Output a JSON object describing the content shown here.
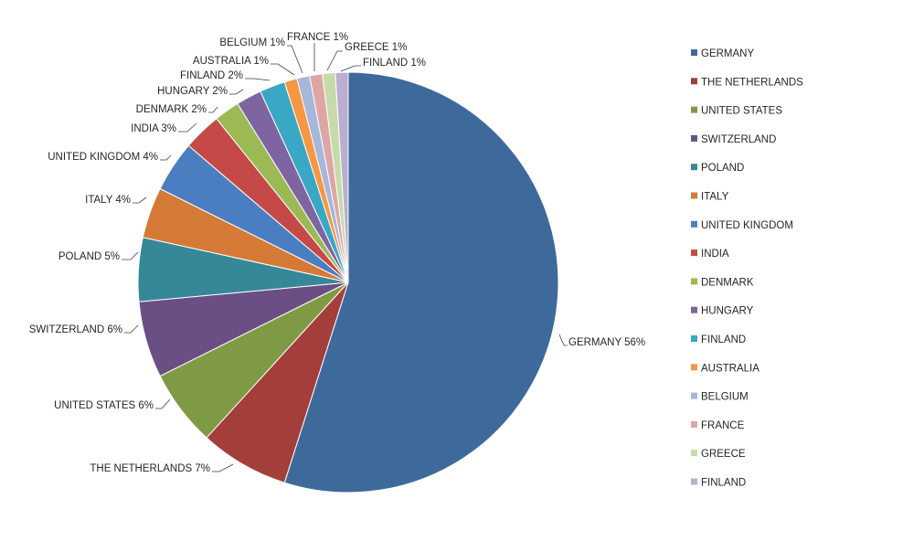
{
  "chart_data": {
    "type": "pie",
    "title": "",
    "legend_position": "right",
    "start": "12 o'clock, clockwise",
    "slices": [
      {
        "name": "GERMANY",
        "value": 56,
        "label": "GERMANY  56%",
        "color": "#3E6A9B"
      },
      {
        "name": "THE NETHERLANDS",
        "value": 7,
        "label": "THE  NETHERLANDS  7%",
        "color": "#A43E3B"
      },
      {
        "name": "UNITED STATES",
        "value": 6,
        "label": "UNITED  STATES  6%",
        "color": "#7F9A45"
      },
      {
        "name": "SWITZERLAND",
        "value": 6,
        "label": "SWITZERLAND  6%",
        "color": "#6A4F84"
      },
      {
        "name": "POLAND",
        "value": 5,
        "label": "POLAND  5%",
        "color": "#368899"
      },
      {
        "name": "ITALY",
        "value": 4,
        "label": "ITALY  4%",
        "color": "#D57A36"
      },
      {
        "name": "UNITED KINGDOM",
        "value": 4,
        "label": "UNITED  KINGDOM  4%",
        "color": "#4A7EC0"
      },
      {
        "name": "INDIA",
        "value": 3,
        "label": "INDIA 3%",
        "color": "#C54A47"
      },
      {
        "name": "DENMARK",
        "value": 2,
        "label": "DENMARK  2%",
        "color": "#9BBA56"
      },
      {
        "name": "HUNGARY",
        "value": 2,
        "label": "HUNGARY  2%",
        "color": "#7F64A2"
      },
      {
        "name": "FINLAND",
        "value": 2,
        "label": "FINLAND  2%",
        "color": "#3AA7C4"
      },
      {
        "name": "AUSTRALIA",
        "value": 1,
        "label": "AUSTRALIA  1%",
        "color": "#F79743"
      },
      {
        "name": "BELGIUM",
        "value": 1,
        "label": "BELGIUM  1%",
        "color": "#A5B7DA"
      },
      {
        "name": "FRANCE",
        "value": 1,
        "label": "FRANCE  1%",
        "color": "#DDA6A5"
      },
      {
        "name": "GREECE",
        "value": 1,
        "label": "GREECE  1%",
        "color": "#C7DBAA"
      },
      {
        "name": "FINLAND",
        "value": 1,
        "label": "FINLAND  1%",
        "color": "#BBAED0"
      }
    ]
  }
}
